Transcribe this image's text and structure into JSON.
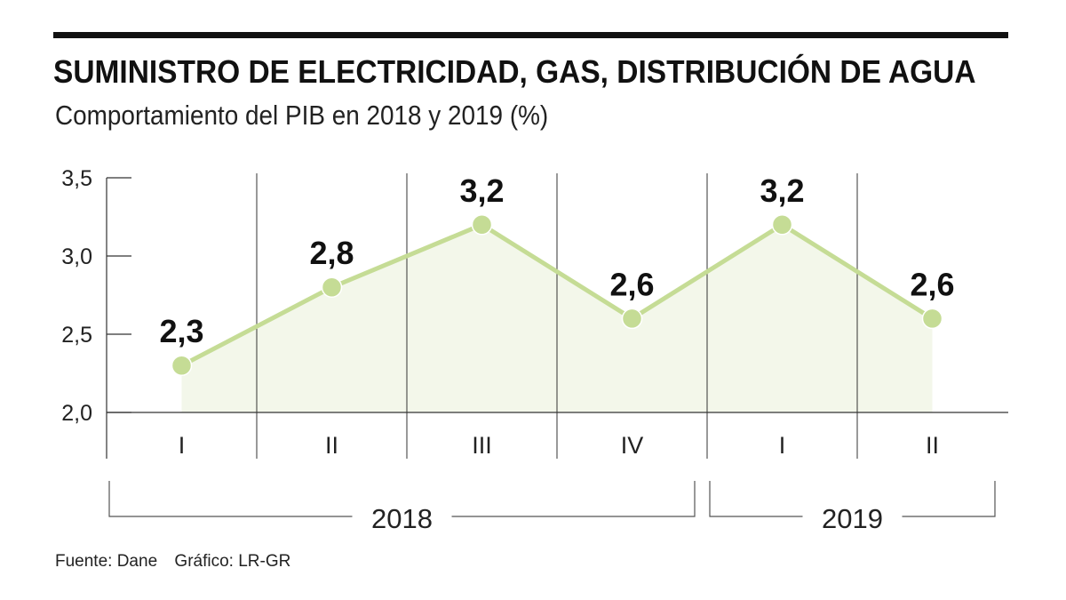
{
  "title": "SUMINISTRO DE ELECTRICIDAD, GAS, DISTRIBUCIÓN DE AGUA",
  "subtitle": "Comportamiento del PIB en 2018 y 2019 (%)",
  "source": {
    "fuente": "Fuente: Dane",
    "grafico": "Gráfico: LR-GR"
  },
  "colors": {
    "line": "#c5dc95",
    "area": "#f3f7ea",
    "point": "#c5dc95",
    "text": "#111111"
  },
  "chart_data": {
    "type": "line",
    "title": "SUMINISTRO DE ELECTRICIDAD, GAS, DISTRIBUCIÓN DE AGUA",
    "subtitle": "Comportamiento del PIB en 2018 y 2019 (%)",
    "categories": [
      "I",
      "II",
      "III",
      "IV",
      "I",
      "II"
    ],
    "values": [
      2.3,
      2.8,
      3.2,
      2.6,
      3.2,
      2.6
    ],
    "data_labels": [
      "2,3",
      "2,8",
      "3,2",
      "2,6",
      "3,2",
      "2,6"
    ],
    "ylim": [
      2.0,
      3.5
    ],
    "yticks": [
      2.0,
      2.5,
      3.0,
      3.5
    ],
    "ytick_labels": [
      "2,0",
      "2,5",
      "3,0",
      "3,5"
    ],
    "groups": [
      {
        "label": "2018",
        "start": 0,
        "end": 3
      },
      {
        "label": "2019",
        "start": 4,
        "end": 5
      }
    ],
    "xlabel": "",
    "ylabel": "",
    "fill_area": true
  }
}
